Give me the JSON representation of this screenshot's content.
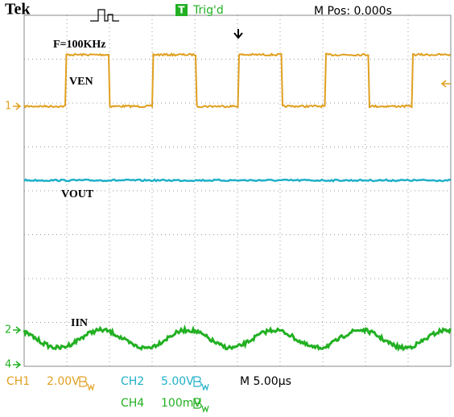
{
  "header": {
    "brand": "Tek",
    "trigger_state": "Trig'd",
    "position": "M Pos: 0.000s"
  },
  "traces": {
    "frequency": "F=100KHz",
    "ch1": "VEN",
    "ch2": "VOUT",
    "ch4": "IIN"
  },
  "markers": {
    "ch1": "1",
    "ch2": "2",
    "ch4": "4",
    "trigger": "T"
  },
  "readout": {
    "ch1": {
      "name": "CH1",
      "scale": "2.00V"
    },
    "ch2": {
      "name": "CH2",
      "scale": "5.00V"
    },
    "ch4": {
      "name": "CH4",
      "scale": "100mV"
    },
    "timebase": "M 5.00µs"
  }
}
